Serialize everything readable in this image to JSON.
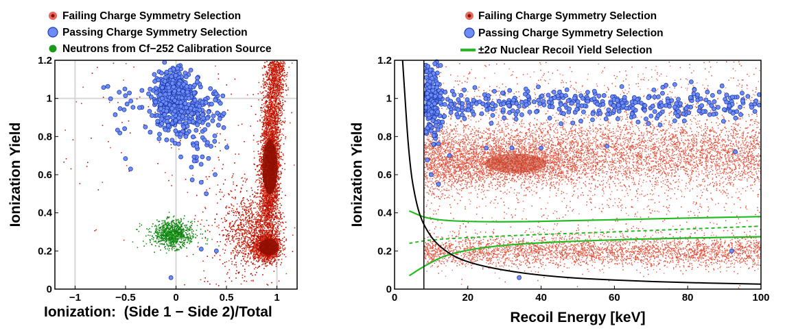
{
  "chart_data": [
    {
      "type": "scatter",
      "xlabel": "Ionization:  (Side 1 − Side 2)/Total",
      "ylabel": "Ionization Yield",
      "xlim": [
        -1.2,
        1.2
      ],
      "ylim": [
        0,
        1.2
      ],
      "xticks": [
        "−1",
        "−0.5",
        "0",
        "0.5",
        "1"
      ],
      "yticks": [
        "0",
        "0.2",
        "0.4",
        "0.6",
        "0.8",
        "1",
        "1.2"
      ],
      "grid": "lines at x = −1, 0, 1 and y = 1",
      "legend": "top",
      "series": [
        {
          "name": "Failing Charge Symmetry Selection",
          "color": "#cc1500",
          "marker": "small dots",
          "clusters": [
            {
              "x": 0.92,
              "y": 0.62,
              "sx": 0.05,
              "sy": 0.13
            },
            {
              "x": 0.9,
              "y": 0.22,
              "sx": 0.06,
              "sy": 0.04
            },
            {
              "x": 0.96,
              "y": 1.0,
              "sx": 0.03,
              "sy": 0.12
            },
            {
              "x": 0.75,
              "y": 0.32,
              "sx": 0.14,
              "sy": 0.1
            }
          ]
        },
        {
          "name": "Passing Charge Symmetry Selection",
          "color": "#4f73f0",
          "marker": "circles",
          "clusters": [
            {
              "x": -0.05,
              "y": 0.99,
              "sx": 0.12,
              "sy": 0.08
            },
            {
              "x": 0.2,
              "y": 0.92,
              "sx": 0.12,
              "sy": 0.08
            }
          ]
        },
        {
          "name": "Neutrons from Cf−252 Calibration Source",
          "color": "#1a9a1a",
          "marker": "small dots",
          "clusters": [
            {
              "x": -0.05,
              "y": 0.29,
              "sx": 0.09,
              "sy": 0.04
            }
          ]
        }
      ]
    },
    {
      "type": "scatter",
      "xlabel": "Recoil Energy [keV]",
      "ylabel": "Ionization Yield",
      "xlim": [
        0,
        100
      ],
      "ylim": [
        0,
        1.2
      ],
      "xticks": [
        "0",
        "20",
        "40",
        "60",
        "80",
        "100"
      ],
      "yticks": [
        "0",
        "0.2",
        "0.4",
        "0.6",
        "0.8",
        "1",
        "1.2"
      ],
      "legend": "top",
      "series": [
        {
          "name": "Failing Charge Symmetry Selection",
          "color": "#cc1500",
          "marker": "small dots",
          "clusters": [
            {
              "x_range": [
                8,
                100
              ],
              "y": 0.7,
              "sy": 0.09
            },
            {
              "x_range": [
                8,
                100
              ],
              "y": 0.2,
              "sy": 0.04
            },
            {
              "x": 35,
              "y": 0.66,
              "sx": 10,
              "sy": 0.06
            }
          ]
        },
        {
          "name": "Passing Charge Symmetry Selection",
          "color": "#4f73f0",
          "marker": "circles",
          "clusters": [
            {
              "x_range": [
                8,
                100
              ],
              "y": 0.97,
              "sy": 0.04
            },
            {
              "x": 10,
              "y": 1.0,
              "sx": 2,
              "sy": 0.12
            }
          ]
        },
        {
          "name": "±2σ Nuclear Recoil Yield Selection",
          "color": "#22bb22",
          "marker": "line",
          "curves": {
            "upper": [
              [
                4,
                0.41
              ],
              [
                10,
                0.36
              ],
              [
                30,
                0.35
              ],
              [
                60,
                0.365
              ],
              [
                100,
                0.38
              ]
            ],
            "lower": [
              [
                4,
                0.07
              ],
              [
                8,
                0.12
              ],
              [
                15,
                0.19
              ],
              [
                30,
                0.235
              ],
              [
                60,
                0.26
              ],
              [
                100,
                0.275
              ]
            ],
            "mean": [
              [
                4,
                0.24
              ],
              [
                10,
                0.26
              ],
              [
                30,
                0.28
              ],
              [
                60,
                0.3
              ],
              [
                100,
                0.33
              ]
            ]
          }
        }
      ],
      "threshold_line_x": 8,
      "noise_curve": [
        [
          2.2,
          1.2
        ],
        [
          4,
          0.66
        ],
        [
          6,
          0.44
        ],
        [
          8,
          0.33
        ],
        [
          12,
          0.22
        ],
        [
          20,
          0.132
        ],
        [
          40,
          0.066
        ],
        [
          70,
          0.038
        ],
        [
          100,
          0.026
        ]
      ]
    }
  ],
  "legend_left": [
    {
      "label": "Failing Charge Symmetry Selection",
      "color": "#cc1500",
      "icon": "red-dot-icon"
    },
    {
      "label": "Passing Charge Symmetry Selection",
      "color": "#4f73f0",
      "icon": "blue-circle-icon"
    },
    {
      "label": "Neutrons from Cf−252 Calibration Source",
      "color": "#1a9a1a",
      "icon": "green-dot-icon"
    }
  ],
  "legend_right": [
    {
      "label": "Failing Charge Symmetry Selection",
      "color": "#cc1500",
      "icon": "red-dot-icon"
    },
    {
      "label": "Passing Charge Symmetry Selection",
      "color": "#4f73f0",
      "icon": "blue-circle-icon"
    },
    {
      "label": "±2σ Nuclear Recoil Yield Selection",
      "color": "#22bb22",
      "icon": "green-line-icon"
    }
  ]
}
